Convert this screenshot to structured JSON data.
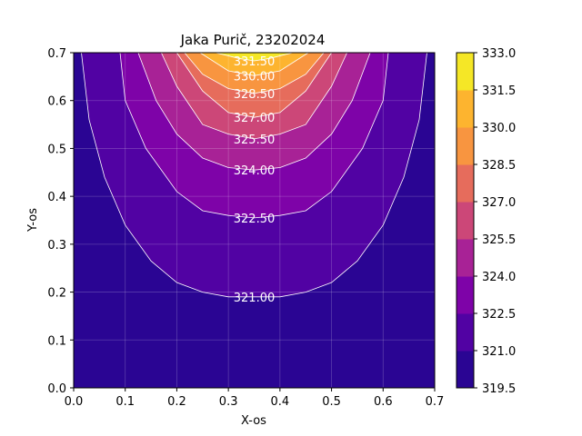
{
  "chart_data": {
    "type": "contour",
    "title": "Jaka Purič, 23202024",
    "xlabel": "X-os",
    "ylabel": "Y-os",
    "xlim": [
      0.0,
      0.7
    ],
    "ylim": [
      0.0,
      0.7
    ],
    "x_ticks": [
      "0.0",
      "0.1",
      "0.2",
      "0.3",
      "0.4",
      "0.5",
      "0.6",
      "0.7"
    ],
    "y_ticks": [
      "0.0",
      "0.1",
      "0.2",
      "0.3",
      "0.4",
      "0.5",
      "0.6",
      "0.7"
    ],
    "grid": true,
    "colormap": "plasma",
    "levels": [
      319.5,
      321.0,
      322.5,
      324.0,
      325.5,
      327.0,
      328.5,
      330.0,
      331.5,
      333.0
    ],
    "colorbar_ticks": [
      "319.5",
      "321.0",
      "322.5",
      "324.0",
      "325.5",
      "327.0",
      "328.5",
      "330.0",
      "331.5",
      "333.0"
    ],
    "level_colors": [
      "#2a0593",
      "#5102a3",
      "#7e03a8",
      "#a82296",
      "#cc4778",
      "#e66c5c",
      "#f89540",
      "#fdb42f",
      "#f5e726"
    ],
    "contour_lines": [
      {
        "value": 321.0,
        "label": "321.00",
        "points": [
          [
            0.015,
            0.7
          ],
          [
            0.03,
            0.56
          ],
          [
            0.06,
            0.44
          ],
          [
            0.1,
            0.34
          ],
          [
            0.15,
            0.265
          ],
          [
            0.2,
            0.22
          ],
          [
            0.25,
            0.2
          ],
          [
            0.3,
            0.19
          ],
          [
            0.35,
            0.19
          ],
          [
            0.4,
            0.19
          ],
          [
            0.45,
            0.2
          ],
          [
            0.5,
            0.22
          ],
          [
            0.55,
            0.265
          ],
          [
            0.6,
            0.34
          ],
          [
            0.64,
            0.44
          ],
          [
            0.67,
            0.56
          ],
          [
            0.685,
            0.7
          ]
        ]
      },
      {
        "value": 322.5,
        "label": "322.50",
        "points": [
          [
            0.09,
            0.7
          ],
          [
            0.1,
            0.6
          ],
          [
            0.14,
            0.5
          ],
          [
            0.2,
            0.41
          ],
          [
            0.25,
            0.37
          ],
          [
            0.3,
            0.36
          ],
          [
            0.35,
            0.355
          ],
          [
            0.4,
            0.36
          ],
          [
            0.45,
            0.37
          ],
          [
            0.5,
            0.41
          ],
          [
            0.56,
            0.5
          ],
          [
            0.6,
            0.6
          ],
          [
            0.61,
            0.7
          ]
        ]
      },
      {
        "value": 324.0,
        "label": "324.00",
        "points": [
          [
            0.125,
            0.7
          ],
          [
            0.16,
            0.6
          ],
          [
            0.2,
            0.53
          ],
          [
            0.25,
            0.48
          ],
          [
            0.3,
            0.46
          ],
          [
            0.35,
            0.455
          ],
          [
            0.4,
            0.46
          ],
          [
            0.45,
            0.48
          ],
          [
            0.5,
            0.53
          ],
          [
            0.54,
            0.6
          ],
          [
            0.575,
            0.7
          ]
        ]
      },
      {
        "value": 325.5,
        "label": "325.50",
        "points": [
          [
            0.17,
            0.7
          ],
          [
            0.2,
            0.63
          ],
          [
            0.25,
            0.55
          ],
          [
            0.3,
            0.53
          ],
          [
            0.35,
            0.52
          ],
          [
            0.4,
            0.53
          ],
          [
            0.45,
            0.55
          ],
          [
            0.5,
            0.63
          ],
          [
            0.53,
            0.7
          ]
        ]
      },
      {
        "value": 327.0,
        "label": "327.00",
        "points": [
          [
            0.2,
            0.7
          ],
          [
            0.25,
            0.62
          ],
          [
            0.3,
            0.575
          ],
          [
            0.35,
            0.565
          ],
          [
            0.4,
            0.575
          ],
          [
            0.45,
            0.62
          ],
          [
            0.5,
            0.7
          ]
        ]
      },
      {
        "value": 328.5,
        "label": "328.50",
        "points": [
          [
            0.215,
            0.7
          ],
          [
            0.25,
            0.655
          ],
          [
            0.3,
            0.625
          ],
          [
            0.35,
            0.615
          ],
          [
            0.4,
            0.625
          ],
          [
            0.45,
            0.655
          ],
          [
            0.485,
            0.7
          ]
        ]
      },
      {
        "value": 330.0,
        "label": "330.00",
        "points": [
          [
            0.245,
            0.7
          ],
          [
            0.3,
            0.662
          ],
          [
            0.35,
            0.652
          ],
          [
            0.4,
            0.662
          ],
          [
            0.455,
            0.7
          ]
        ]
      },
      {
        "value": 331.5,
        "label": "331.50",
        "points": [
          [
            0.275,
            0.7
          ],
          [
            0.32,
            0.688
          ],
          [
            0.35,
            0.683
          ],
          [
            0.38,
            0.688
          ],
          [
            0.425,
            0.7
          ]
        ]
      }
    ]
  }
}
